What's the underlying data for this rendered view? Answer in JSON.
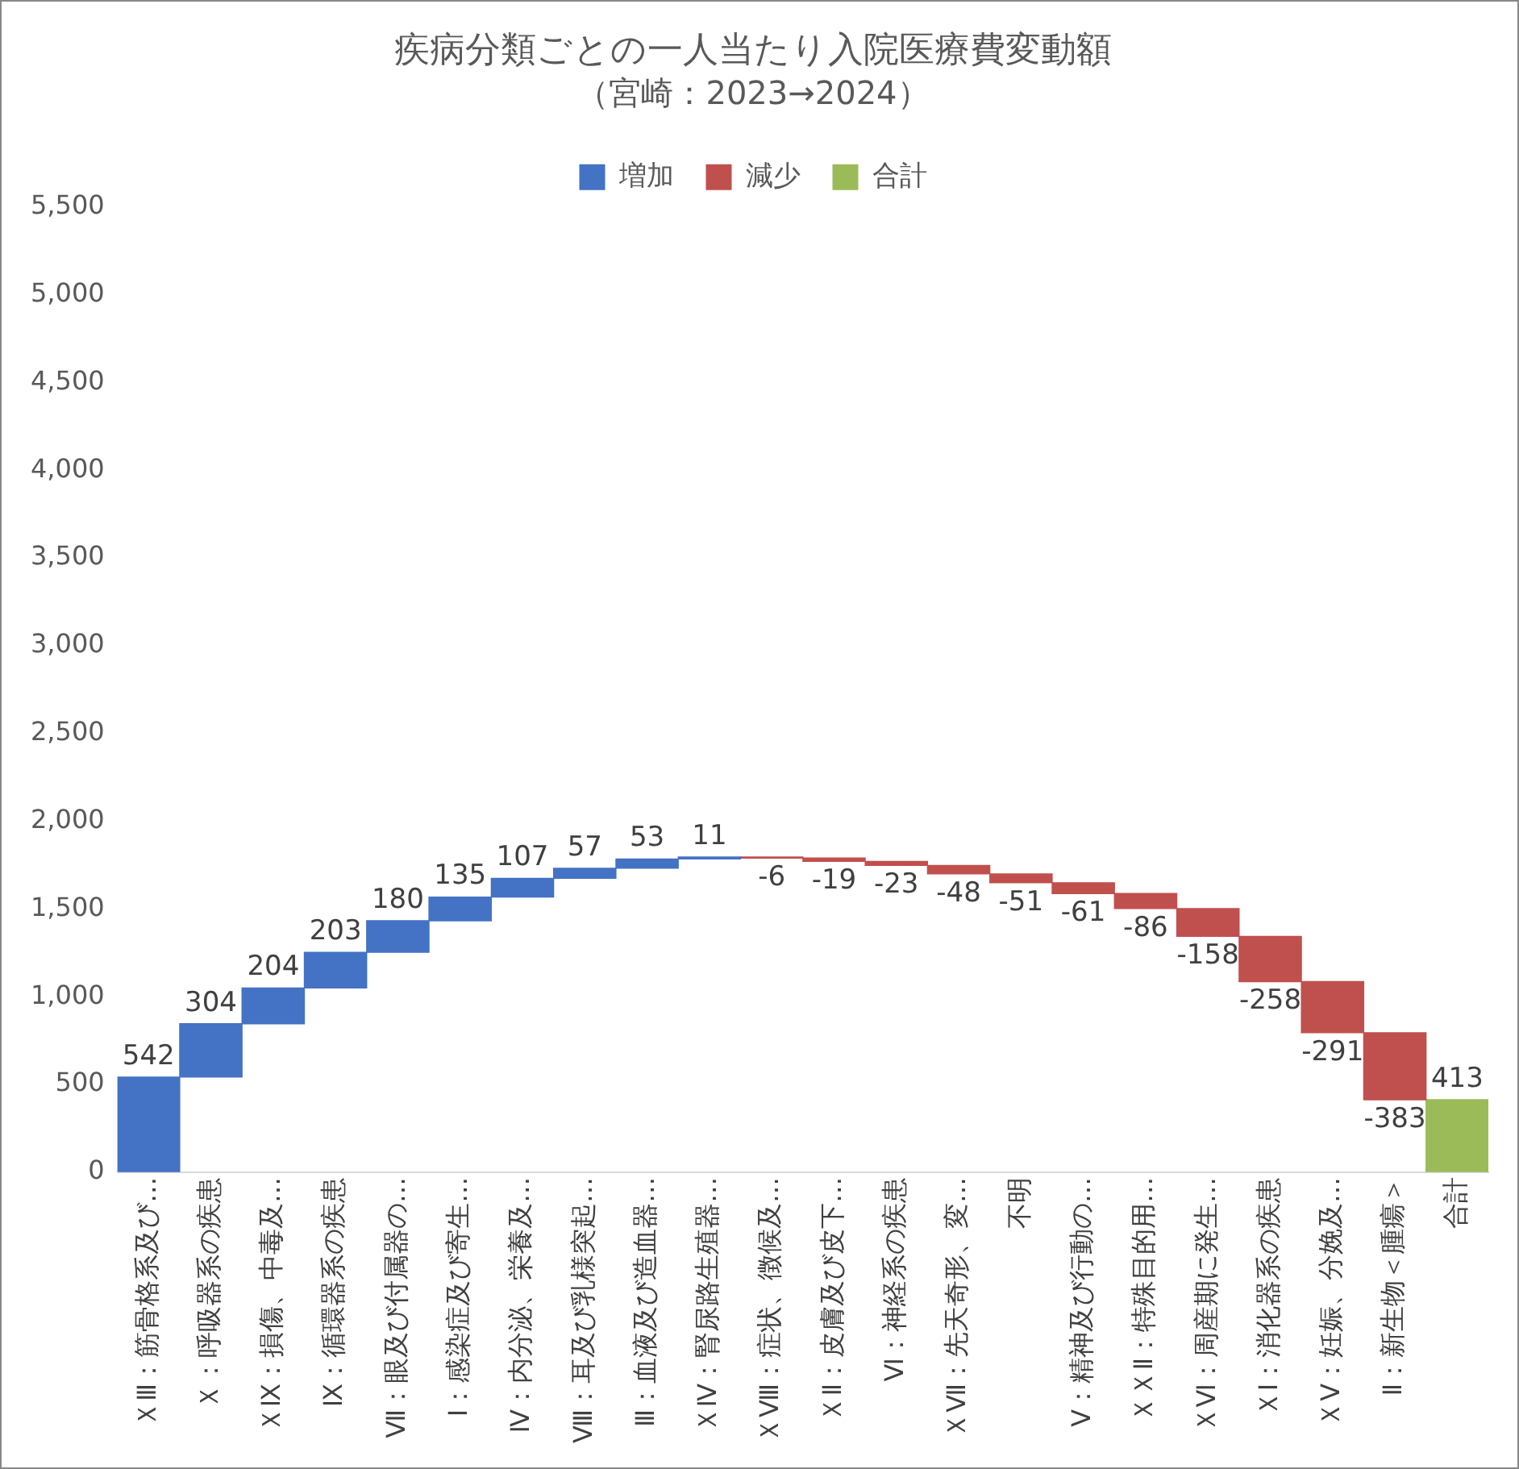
{
  "chart_data": {
    "type": "bar",
    "title": "疾病分類ごとの一人当たり入院医療費変動額",
    "subtitle": "（宮崎：2023→2024）",
    "categories": [
      "ＸⅢ：筋骨格系及び…",
      "Ｘ：呼吸器系の疾患",
      "ＸⅨ：損傷、中毒及…",
      "Ⅸ：循環器系の疾患",
      "Ⅶ：眼及び付属器の…",
      "Ⅰ：感染症及び寄生…",
      "Ⅳ：内分泌、栄養及…",
      "Ⅷ：耳及び乳様突起…",
      "Ⅲ：血液及び造血器…",
      "ＸⅣ：腎尿路生殖器…",
      "ＸⅧ：症状、徴候及…",
      "ＸⅡ：皮膚及び皮下…",
      "Ⅵ：神経系の疾患",
      "ＸⅦ：先天奇形、変…",
      "不明",
      "Ⅴ：精神及び行動の…",
      "ＸＸⅡ：特殊目的用…",
      "ＸⅥ：周産期に発生…",
      "ＸⅠ：消化器系の疾患",
      "ＸⅤ：妊娠、分娩及…",
      "Ⅱ：新生物＜腫瘍＞",
      "合計"
    ],
    "series": [
      {
        "name": "増加",
        "color": "#4472c4",
        "values": [
          542,
          304,
          204,
          203,
          180,
          135,
          107,
          57,
          53,
          11,
          null,
          null,
          null,
          null,
          null,
          null,
          null,
          null,
          null,
          null,
          null,
          null
        ],
        "base": [
          0,
          542,
          846,
          1050,
          1253,
          1433,
          1568,
          1675,
          1732,
          1785,
          null,
          null,
          null,
          null,
          null,
          null,
          null,
          null,
          null,
          null,
          null,
          null
        ]
      },
      {
        "name": "減少",
        "color": "#c0504d",
        "values": [
          null,
          null,
          null,
          null,
          null,
          null,
          null,
          null,
          null,
          null,
          -6,
          -19,
          -23,
          -48,
          -51,
          -61,
          -86,
          -158,
          -258,
          -291,
          -383,
          null
        ],
        "base": [
          null,
          null,
          null,
          null,
          null,
          null,
          null,
          null,
          null,
          null,
          1796,
          1790,
          1771,
          1748,
          1700,
          1649,
          1588,
          1502,
          1344,
          1086,
          795,
          null
        ]
      },
      {
        "name": "合計",
        "color": "#9bbb59",
        "values": [
          null,
          null,
          null,
          null,
          null,
          null,
          null,
          null,
          null,
          null,
          null,
          null,
          null,
          null,
          null,
          null,
          null,
          null,
          null,
          null,
          null,
          413
        ],
        "base": [
          null,
          null,
          null,
          null,
          null,
          null,
          null,
          null,
          null,
          null,
          null,
          null,
          null,
          null,
          null,
          null,
          null,
          null,
          null,
          null,
          null,
          0
        ]
      }
    ],
    "ylim": [
      0,
      5500
    ],
    "yticks": [
      0,
      500,
      {
        "value": 1000,
        "label": "1,000"
      },
      {
        "value": 1500,
        "label": "1,500"
      },
      {
        "value": 2000,
        "label": "2,000"
      },
      {
        "value": 2500,
        "label": "2,500"
      },
      {
        "value": 3000,
        "label": "3,000"
      },
      {
        "value": 3500,
        "label": "3,500"
      },
      {
        "value": 4000,
        "label": "4,000"
      },
      {
        "value": 4500,
        "label": "4,500"
      },
      {
        "value": 5000,
        "label": "5,000"
      },
      {
        "value": 5500,
        "label": "5,500"
      }
    ],
    "grid": false,
    "legend": "top",
    "data_labels": true
  }
}
